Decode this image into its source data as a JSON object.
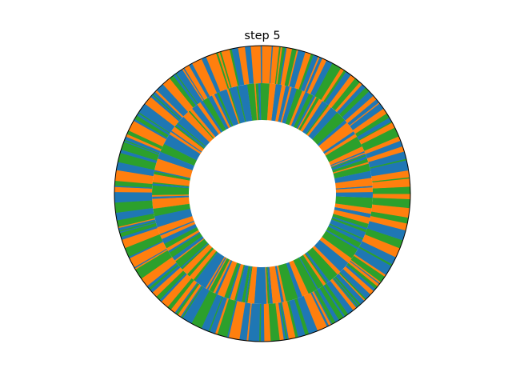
{
  "chart_data": {
    "type": "pie",
    "title": "step 5",
    "variant": "concentric two-ring donut",
    "colors": [
      "#1f77b4",
      "#ff7f0e",
      "#2ca02c"
    ],
    "rings": [
      {
        "name": "",
        "slices": 150,
        "pattern_seed": 11
      },
      {
        "name": "",
        "slices": 190,
        "pattern_seed": 29
      }
    ],
    "outline": true
  }
}
